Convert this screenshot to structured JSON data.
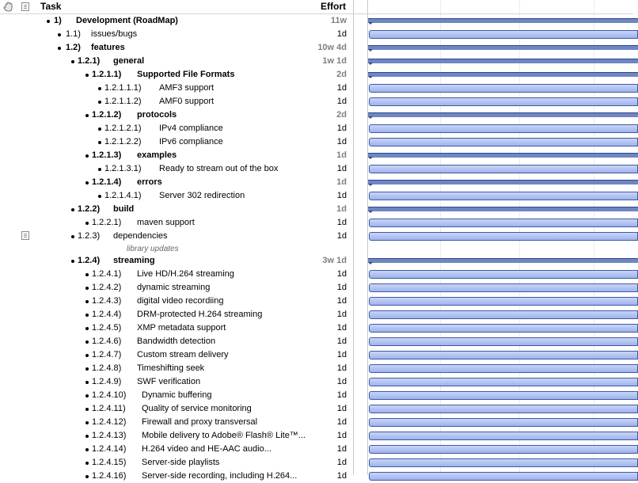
{
  "header": {
    "task_label": "Task",
    "effort_label": "Effort"
  },
  "rows": [
    {
      "num": "1)",
      "title": "Development (RoadMap)",
      "effort": "11w",
      "level": 0,
      "bold": true,
      "group": true
    },
    {
      "num": "1.1)",
      "title": "issues/bugs",
      "effort": "1d",
      "level": 1,
      "bold": false,
      "group": false
    },
    {
      "num": "1.2)",
      "title": "features",
      "effort": "10w 4d",
      "level": 1,
      "bold": true,
      "group": true
    },
    {
      "num": "1.2.1)",
      "title": "general",
      "effort": "1w 1d",
      "level": 2,
      "bold": true,
      "group": true
    },
    {
      "num": "1.2.1.1)",
      "title": "Supported File Formats",
      "effort": "2d",
      "level": 3,
      "bold": true,
      "group": true
    },
    {
      "num": "1.2.1.1.1)",
      "title": "AMF3 support",
      "effort": "1d",
      "level": 4,
      "bold": false,
      "group": false
    },
    {
      "num": "1.2.1.1.2)",
      "title": "AMF0 support",
      "effort": "1d",
      "level": 4,
      "bold": false,
      "group": false
    },
    {
      "num": "1.2.1.2)",
      "title": "protocols",
      "effort": "2d",
      "level": 3,
      "bold": true,
      "group": true
    },
    {
      "num": "1.2.1.2.1)",
      "title": "IPv4 compliance",
      "effort": "1d",
      "level": 4,
      "bold": false,
      "group": false
    },
    {
      "num": "1.2.1.2.2)",
      "title": "IPv6 compliance",
      "effort": "1d",
      "level": 4,
      "bold": false,
      "group": false
    },
    {
      "num": "1.2.1.3)",
      "title": "examples",
      "effort": "1d",
      "level": 3,
      "bold": true,
      "group": true
    },
    {
      "num": "1.2.1.3.1)",
      "title": "Ready to stream out of the box",
      "effort": "1d",
      "level": 4,
      "bold": false,
      "group": false
    },
    {
      "num": "1.2.1.4)",
      "title": "errors",
      "effort": "1d",
      "level": 3,
      "bold": true,
      "group": true
    },
    {
      "num": "1.2.1.4.1)",
      "title": "Server 302 redirection",
      "effort": "1d",
      "level": 4,
      "bold": false,
      "group": false
    },
    {
      "num": "1.2.2)",
      "title": "build",
      "effort": "1d",
      "level": 2,
      "bold": true,
      "group": true
    },
    {
      "num": "1.2.2.1)",
      "title": "maven support",
      "effort": "1d",
      "level": 3,
      "bold": false,
      "group": false
    },
    {
      "num": "1.2.3)",
      "title": "dependencies",
      "effort": "1d",
      "level": 2,
      "bold": false,
      "group": false,
      "note": "library updates"
    },
    {
      "num": "1.2.4)",
      "title": "streaming",
      "effort": "3w 1d",
      "level": 2,
      "bold": true,
      "group": true
    },
    {
      "num": "1.2.4.1)",
      "title": "Live HD/H.264 streaming",
      "effort": "1d",
      "level": 3,
      "bold": false,
      "group": false
    },
    {
      "num": "1.2.4.2)",
      "title": "dynamic streaming",
      "effort": "1d",
      "level": 3,
      "bold": false,
      "group": false
    },
    {
      "num": "1.2.4.3)",
      "title": "digital video recordiing",
      "effort": "1d",
      "level": 3,
      "bold": false,
      "group": false
    },
    {
      "num": "1.2.4.4)",
      "title": "DRM-protected H.264 streaming",
      "effort": "1d",
      "level": 3,
      "bold": false,
      "group": false
    },
    {
      "num": "1.2.4.5)",
      "title": "XMP metadata support",
      "effort": "1d",
      "level": 3,
      "bold": false,
      "group": false
    },
    {
      "num": "1.2.4.6)",
      "title": "Bandwidth detection",
      "effort": "1d",
      "level": 3,
      "bold": false,
      "group": false
    },
    {
      "num": "1.2.4.7)",
      "title": "Custom stream delivery",
      "effort": "1d",
      "level": 3,
      "bold": false,
      "group": false
    },
    {
      "num": "1.2.4.8)",
      "title": "Timeshifting seek",
      "effort": "1d",
      "level": 3,
      "bold": false,
      "group": false
    },
    {
      "num": "1.2.4.9)",
      "title": "SWF verification",
      "effort": "1d",
      "level": 3,
      "bold": false,
      "group": false
    },
    {
      "num": "1.2.4.10)",
      "title": "Dynamic buffering",
      "effort": "1d",
      "level": 3,
      "bold": false,
      "group": false
    },
    {
      "num": "1.2.4.11)",
      "title": "Quality of service monitoring",
      "effort": "1d",
      "level": 3,
      "bold": false,
      "group": false
    },
    {
      "num": "1.2.4.12)",
      "title": "Firewall and proxy transversal",
      "effort": "1d",
      "level": 3,
      "bold": false,
      "group": false
    },
    {
      "num": "1.2.4.13)",
      "title": "Mobile delivery to Adobe® Flash® Lite™...",
      "effort": "1d",
      "level": 3,
      "bold": false,
      "group": false
    },
    {
      "num": "1.2.4.14)",
      "title": "H.264 video and HE-AAC audio...",
      "effort": "1d",
      "level": 3,
      "bold": false,
      "group": false
    },
    {
      "num": "1.2.4.15)",
      "title": "Server-side playlists",
      "effort": "1d",
      "level": 3,
      "bold": false,
      "group": false
    },
    {
      "num": "1.2.4.16)",
      "title": "Server-side recording, including H.264...",
      "effort": "1d",
      "level": 3,
      "bold": false,
      "group": false
    }
  ]
}
